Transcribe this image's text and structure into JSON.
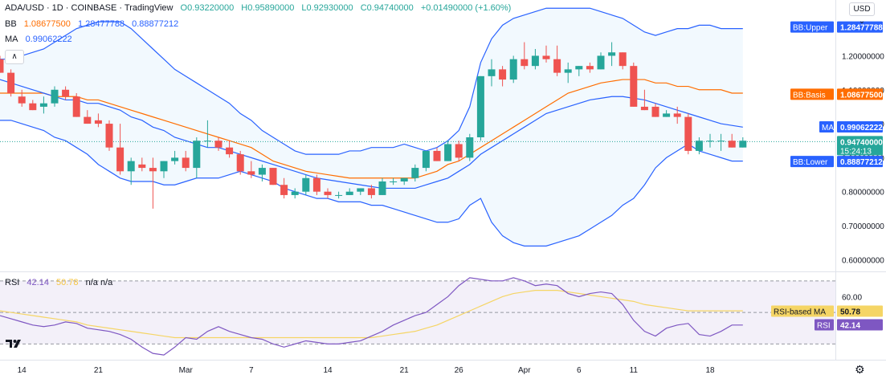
{
  "header": {
    "symbol": "ADA/USD · 1D · COINBASE · TradingView",
    "open": "O0.93220000",
    "high": "H0.95890000",
    "low": "L0.92930000",
    "close": "C0.94740000",
    "change": "+0.01490000 (+1.60%)"
  },
  "bb_legend": {
    "name": "BB",
    "basis": "1.08677500",
    "upper": "1.28477788",
    "lower": "0.88877212"
  },
  "ma_legend": {
    "name": "MA",
    "value": "0.99062222"
  },
  "rsi_legend": {
    "name": "RSI",
    "value": "42.14",
    "ma": "50.78",
    "extra": "n/a  n/a"
  },
  "currency": "USD",
  "colors": {
    "up": "#26a69a",
    "down": "#ef5350",
    "bb_band": "#2962ff",
    "bb_basis": "#ff6d00",
    "rsi": "#7e57c2",
    "rsi_ma": "#f5d565"
  },
  "chart_data": [
    {
      "type": "candlestick",
      "title": "ADA/USD · 1D · COINBASE",
      "y_ticks": [
        "1.20000000",
        "1.10000000",
        "1.00000000",
        "0.90000000",
        "0.80000000",
        "0.70000000",
        "0.60000000"
      ],
      "y_tick_values": [
        1.2,
        1.1,
        1.0,
        0.9,
        0.8,
        0.7,
        0.6
      ],
      "ylim": [
        0.57,
        1.35
      ],
      "x_ticks": [
        {
          "label": "14",
          "index": 2
        },
        {
          "label": "21",
          "index": 9
        },
        {
          "label": "Mar",
          "index": 17
        },
        {
          "label": "7",
          "index": 23
        },
        {
          "label": "14",
          "index": 30
        },
        {
          "label": "21",
          "index": 37
        },
        {
          "label": "26",
          "index": 42
        },
        {
          "label": "Apr",
          "index": 48
        },
        {
          "label": "6",
          "index": 53
        },
        {
          "label": "11",
          "index": 58
        },
        {
          "label": "18",
          "index": 65
        }
      ],
      "candles": [
        [
          1.19,
          1.2,
          1.15,
          1.15
        ],
        [
          1.15,
          1.16,
          1.08,
          1.09
        ],
        [
          1.08,
          1.1,
          1.05,
          1.06
        ],
        [
          1.06,
          1.07,
          1.04,
          1.04
        ],
        [
          1.05,
          1.08,
          1.03,
          1.06
        ],
        [
          1.06,
          1.11,
          1.05,
          1.1
        ],
        [
          1.1,
          1.11,
          1.07,
          1.08
        ],
        [
          1.08,
          1.09,
          1.02,
          1.02
        ],
        [
          1.02,
          1.04,
          1.0,
          1.0
        ],
        [
          1.01,
          1.03,
          0.99,
          1.0
        ],
        [
          1.0,
          1.01,
          0.92,
          0.93
        ],
        [
          0.93,
          1.0,
          0.85,
          0.86
        ],
        [
          0.86,
          0.9,
          0.82,
          0.89
        ],
        [
          0.88,
          0.9,
          0.86,
          0.87
        ],
        [
          0.87,
          0.9,
          0.75,
          0.86
        ],
        [
          0.86,
          0.89,
          0.84,
          0.89
        ],
        [
          0.89,
          0.92,
          0.88,
          0.9
        ],
        [
          0.9,
          0.92,
          0.86,
          0.87
        ],
        [
          0.87,
          0.96,
          0.84,
          0.95
        ],
        [
          0.95,
          1.01,
          0.93,
          0.95
        ],
        [
          0.95,
          0.96,
          0.92,
          0.93
        ],
        [
          0.93,
          0.95,
          0.9,
          0.91
        ],
        [
          0.91,
          0.92,
          0.85,
          0.86
        ],
        [
          0.86,
          0.89,
          0.84,
          0.85
        ],
        [
          0.85,
          0.88,
          0.83,
          0.87
        ],
        [
          0.87,
          0.87,
          0.82,
          0.82
        ],
        [
          0.82,
          0.84,
          0.78,
          0.79
        ],
        [
          0.79,
          0.81,
          0.78,
          0.8
        ],
        [
          0.8,
          0.85,
          0.79,
          0.84
        ],
        [
          0.84,
          0.85,
          0.79,
          0.8
        ],
        [
          0.8,
          0.81,
          0.78,
          0.79
        ],
        [
          0.79,
          0.8,
          0.78,
          0.79
        ],
        [
          0.79,
          0.81,
          0.79,
          0.8
        ],
        [
          0.8,
          0.81,
          0.79,
          0.81
        ],
        [
          0.81,
          0.82,
          0.78,
          0.79
        ],
        [
          0.79,
          0.84,
          0.79,
          0.83
        ],
        [
          0.83,
          0.84,
          0.82,
          0.83
        ],
        [
          0.83,
          0.84,
          0.82,
          0.84
        ],
        [
          0.84,
          0.88,
          0.83,
          0.87
        ],
        [
          0.87,
          0.92,
          0.86,
          0.92
        ],
        [
          0.92,
          0.93,
          0.89,
          0.89
        ],
        [
          0.89,
          0.95,
          0.89,
          0.94
        ],
        [
          0.94,
          0.95,
          0.89,
          0.9
        ],
        [
          0.9,
          0.97,
          0.89,
          0.96
        ],
        [
          0.96,
          1.14,
          0.95,
          1.14
        ],
        [
          1.14,
          1.19,
          1.11,
          1.16
        ],
        [
          1.16,
          1.17,
          1.11,
          1.13
        ],
        [
          1.13,
          1.2,
          1.12,
          1.19
        ],
        [
          1.19,
          1.24,
          1.16,
          1.17
        ],
        [
          1.17,
          1.22,
          1.16,
          1.2
        ],
        [
          1.2,
          1.23,
          1.18,
          1.19
        ],
        [
          1.19,
          1.23,
          1.14,
          1.15
        ],
        [
          1.15,
          1.18,
          1.12,
          1.16
        ],
        [
          1.16,
          1.17,
          1.14,
          1.17
        ],
        [
          1.17,
          1.18,
          1.15,
          1.16
        ],
        [
          1.16,
          1.21,
          1.16,
          1.2
        ],
        [
          1.2,
          1.24,
          1.17,
          1.21
        ],
        [
          1.21,
          1.21,
          1.16,
          1.17
        ],
        [
          1.17,
          1.18,
          1.05,
          1.05
        ],
        [
          1.05,
          1.1,
          1.04,
          1.04
        ],
        [
          1.05,
          1.06,
          1.02,
          1.02
        ],
        [
          1.02,
          1.04,
          1.02,
          1.03
        ],
        [
          1.03,
          1.05,
          1.0,
          1.02
        ],
        [
          1.02,
          1.03,
          0.91,
          0.92
        ],
        [
          0.92,
          0.96,
          0.91,
          0.95
        ],
        [
          0.95,
          0.97,
          0.93,
          0.95
        ],
        [
          0.95,
          0.97,
          0.92,
          0.95
        ],
        [
          0.95,
          0.97,
          0.93,
          0.93
        ],
        [
          0.93,
          0.96,
          0.93,
          0.95
        ]
      ],
      "bb_upper": [
        1.19,
        1.19,
        1.2,
        1.21,
        1.22,
        1.24,
        1.26,
        1.28,
        1.29,
        1.3,
        1.3,
        1.3,
        1.28,
        1.25,
        1.22,
        1.19,
        1.16,
        1.14,
        1.12,
        1.1,
        1.08,
        1.06,
        1.03,
        1.01,
        0.98,
        0.96,
        0.94,
        0.92,
        0.91,
        0.91,
        0.91,
        0.91,
        0.92,
        0.92,
        0.93,
        0.93,
        0.93,
        0.94,
        0.93,
        0.92,
        0.93,
        0.95,
        0.98,
        1.05,
        1.18,
        1.25,
        1.29,
        1.31,
        1.32,
        1.33,
        1.34,
        1.34,
        1.34,
        1.34,
        1.34,
        1.33,
        1.32,
        1.31,
        1.29,
        1.27,
        1.26,
        1.27,
        1.28,
        1.28,
        1.29,
        1.29,
        1.28,
        1.28,
        1.28
      ],
      "bb_basis": [
        1.09,
        1.09,
        1.09,
        1.09,
        1.09,
        1.08,
        1.08,
        1.08,
        1.07,
        1.07,
        1.06,
        1.05,
        1.04,
        1.03,
        1.02,
        1.01,
        1.0,
        0.99,
        0.98,
        0.97,
        0.96,
        0.95,
        0.94,
        0.93,
        0.91,
        0.89,
        0.88,
        0.87,
        0.86,
        0.855,
        0.85,
        0.845,
        0.84,
        0.84,
        0.84,
        0.84,
        0.84,
        0.84,
        0.84,
        0.85,
        0.86,
        0.88,
        0.89,
        0.91,
        0.93,
        0.95,
        0.97,
        0.99,
        1.01,
        1.03,
        1.05,
        1.07,
        1.09,
        1.1,
        1.11,
        1.12,
        1.125,
        1.13,
        1.13,
        1.13,
        1.12,
        1.12,
        1.11,
        1.11,
        1.1,
        1.1,
        1.1,
        1.09,
        1.09
      ],
      "bb_lower": [
        1.01,
        1.01,
        1.0,
        0.99,
        0.98,
        0.96,
        0.95,
        0.93,
        0.91,
        0.88,
        0.86,
        0.84,
        0.83,
        0.83,
        0.83,
        0.82,
        0.82,
        0.83,
        0.84,
        0.84,
        0.84,
        0.85,
        0.86,
        0.85,
        0.84,
        0.83,
        0.81,
        0.8,
        0.79,
        0.78,
        0.78,
        0.77,
        0.77,
        0.77,
        0.76,
        0.76,
        0.75,
        0.74,
        0.73,
        0.72,
        0.71,
        0.71,
        0.72,
        0.76,
        0.78,
        0.71,
        0.67,
        0.65,
        0.64,
        0.64,
        0.64,
        0.65,
        0.66,
        0.67,
        0.69,
        0.71,
        0.73,
        0.76,
        0.78,
        0.82,
        0.87,
        0.9,
        0.92,
        0.94,
        0.92,
        0.91,
        0.9,
        0.89,
        0.89
      ],
      "ma": [
        1.13,
        1.12,
        1.11,
        1.1,
        1.09,
        1.08,
        1.07,
        1.07,
        1.06,
        1.06,
        1.05,
        1.04,
        1.02,
        1.01,
        0.99,
        0.98,
        0.96,
        0.95,
        0.94,
        0.93,
        0.93,
        0.92,
        0.91,
        0.9,
        0.89,
        0.88,
        0.87,
        0.86,
        0.85,
        0.84,
        0.835,
        0.83,
        0.825,
        0.82,
        0.815,
        0.81,
        0.81,
        0.81,
        0.81,
        0.82,
        0.83,
        0.84,
        0.86,
        0.88,
        0.91,
        0.93,
        0.95,
        0.97,
        0.99,
        1.01,
        1.03,
        1.04,
        1.05,
        1.06,
        1.07,
        1.075,
        1.08,
        1.08,
        1.075,
        1.07,
        1.06,
        1.05,
        1.04,
        1.03,
        1.02,
        1.01,
        1.0,
        0.995,
        0.99
      ],
      "price_labels": {
        "upper": {
          "tag": "BB:Upper",
          "value": "1.28477788",
          "y": 1.28477788
        },
        "basis": {
          "tag": "BB:Basis",
          "value": "1.08677500",
          "y": 1.086775
        },
        "ma": {
          "tag": "MA",
          "value": "0.99062222",
          "y": 0.99062222
        },
        "last": {
          "value": "0.94740000",
          "time": "15:24:13",
          "y": 0.9474
        },
        "lower": {
          "tag": "BB:Lower",
          "value": "0.88877212",
          "y": 0.88877212
        }
      }
    },
    {
      "type": "line",
      "title": "RSI",
      "y_ticks": [
        "60.00"
      ],
      "bands": [
        70,
        50,
        30
      ],
      "ylim": [
        20,
        75
      ],
      "rsi": [
        48,
        46,
        44,
        42,
        41,
        42,
        44,
        43,
        40,
        39,
        38,
        36,
        33,
        28,
        24,
        23,
        28,
        34,
        33,
        38,
        41,
        38,
        36,
        34,
        33,
        30,
        28,
        30,
        32,
        31,
        30,
        30,
        31,
        32,
        35,
        38,
        42,
        45,
        48,
        50,
        55,
        60,
        67,
        72,
        71,
        70,
        70,
        72,
        70,
        67,
        68,
        67,
        62,
        60,
        62,
        63,
        62,
        55,
        45,
        38,
        35,
        40,
        42,
        43,
        36,
        35,
        38,
        42,
        42
      ],
      "rsi_ma": [
        51,
        50,
        49,
        48,
        47,
        46,
        45,
        44,
        42,
        41,
        40,
        39,
        38,
        37,
        36,
        35,
        34,
        34,
        34,
        34,
        34,
        34,
        34,
        34,
        34,
        34,
        34,
        34,
        34,
        34,
        34,
        34,
        34,
        34,
        34,
        35,
        36,
        37,
        38,
        40,
        42,
        45,
        48,
        51,
        54,
        57,
        60,
        62,
        63,
        64,
        64,
        64,
        63,
        62,
        61,
        60,
        59,
        58,
        57,
        55,
        54,
        53,
        52,
        51,
        51,
        51,
        51,
        51,
        51
      ],
      "labels": {
        "ma": {
          "tag": "RSI-based MA",
          "value": "50.78",
          "y": 50.78
        },
        "rsi": {
          "tag": "RSI",
          "value": "42.14",
          "y": 42.14
        }
      }
    }
  ]
}
